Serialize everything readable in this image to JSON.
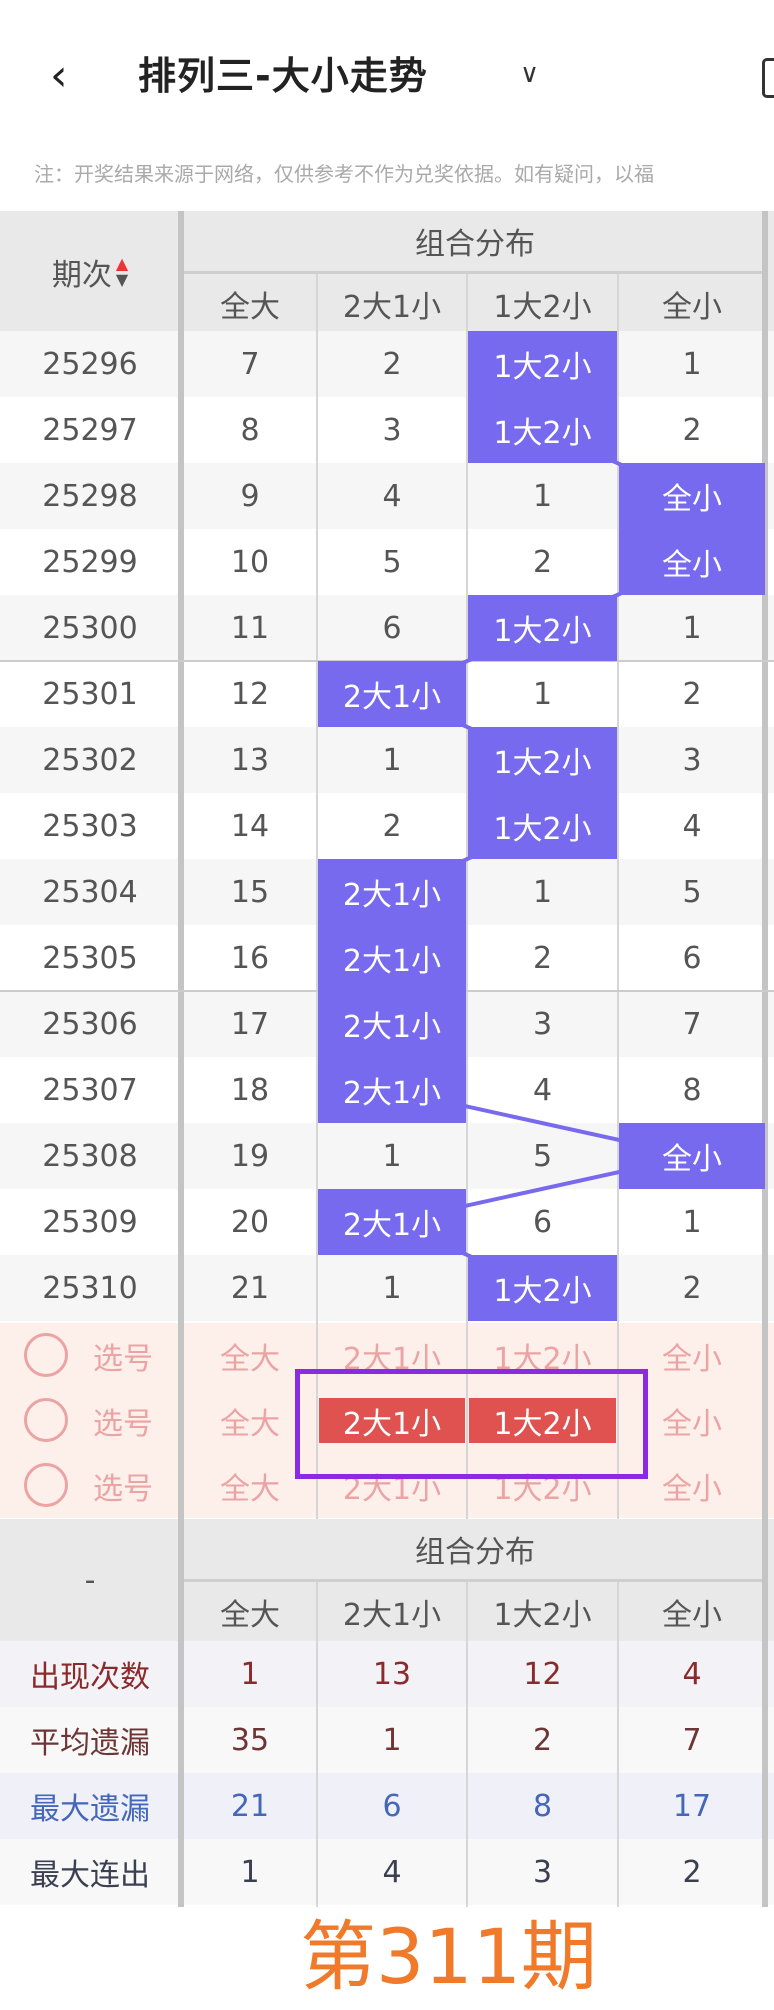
{
  "header": {
    "back_icon": "chevron-left-icon",
    "title": "排列三-大小走势",
    "dropdown_icon": "chevron-down-icon"
  },
  "notice": "注：开奖结果来源于网络，仅供参考不作为兑奖依据。如有疑问，以福",
  "table": {
    "period_header": "期次",
    "sort_icon": "sort-up-down-icon",
    "group_header": "组合分布",
    "columns": [
      "全大",
      "2大1小",
      "1大2小",
      "全小"
    ],
    "rows": [
      {
        "period": "25296",
        "values": [
          "7",
          "2",
          "1大2小",
          "1"
        ],
        "hit": 2
      },
      {
        "period": "25297",
        "values": [
          "8",
          "3",
          "1大2小",
          "2"
        ],
        "hit": 2
      },
      {
        "period": "25298",
        "values": [
          "9",
          "4",
          "1",
          "全小"
        ],
        "hit": 3
      },
      {
        "period": "25299",
        "values": [
          "10",
          "5",
          "2",
          "全小"
        ],
        "hit": 3
      },
      {
        "period": "25300",
        "values": [
          "11",
          "6",
          "1大2小",
          "1"
        ],
        "hit": 2
      },
      {
        "period": "25301",
        "values": [
          "12",
          "2大1小",
          "1",
          "2"
        ],
        "hit": 1
      },
      {
        "period": "25302",
        "values": [
          "13",
          "1",
          "1大2小",
          "3"
        ],
        "hit": 2
      },
      {
        "period": "25303",
        "values": [
          "14",
          "2",
          "1大2小",
          "4"
        ],
        "hit": 2
      },
      {
        "period": "25304",
        "values": [
          "15",
          "2大1小",
          "1",
          "5"
        ],
        "hit": 1
      },
      {
        "period": "25305",
        "values": [
          "16",
          "2大1小",
          "2",
          "6"
        ],
        "hit": 1
      },
      {
        "period": "25306",
        "values": [
          "17",
          "2大1小",
          "3",
          "7"
        ],
        "hit": 1
      },
      {
        "period": "25307",
        "values": [
          "18",
          "2大1小",
          "4",
          "8"
        ],
        "hit": 1
      },
      {
        "period": "25308",
        "values": [
          "19",
          "1",
          "5",
          "全小"
        ],
        "hit": 3
      },
      {
        "period": "25309",
        "values": [
          "20",
          "2大1小",
          "6",
          "1"
        ],
        "hit": 1
      },
      {
        "period": "25310",
        "values": [
          "21",
          "1",
          "1大2小",
          "2"
        ],
        "hit": 2
      }
    ],
    "hit_color": "#776aee",
    "overlay_text": "第311期"
  },
  "selection": {
    "label": "选号",
    "rows": [
      {
        "selected": []
      },
      {
        "selected": [
          1,
          2
        ]
      },
      {
        "selected": []
      }
    ],
    "selected_color": "#e0524f"
  },
  "stats": {
    "corner": "-",
    "group_header": "组合分布",
    "columns": [
      "全大",
      "2大1小",
      "1大2小",
      "全小"
    ],
    "rows": [
      {
        "label": "出现次数",
        "values": [
          "1",
          "13",
          "12",
          "4"
        ],
        "color": "#8b2a2a",
        "bg": "#f3f2f7"
      },
      {
        "label": "平均遗漏",
        "values": [
          "35",
          "1",
          "2",
          "7"
        ],
        "color": "#6e3535",
        "bg": "#f8f8f8"
      },
      {
        "label": "最大遗漏",
        "values": [
          "21",
          "6",
          "8",
          "17"
        ],
        "color": "#4466bb",
        "bg": "#f0f1f8"
      },
      {
        "label": "最大连出",
        "values": [
          "1",
          "4",
          "3",
          "2"
        ],
        "color": "#3a4050",
        "bg": "#f8f8f8"
      }
    ]
  }
}
